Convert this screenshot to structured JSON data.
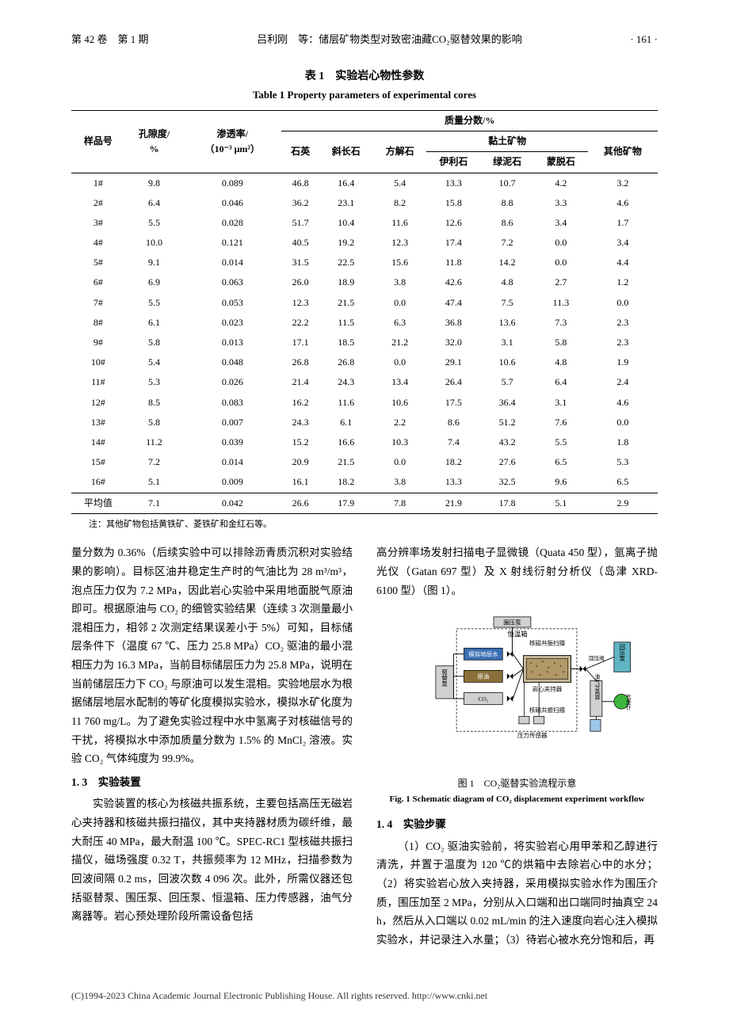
{
  "header": {
    "left": "第 42 卷　第 1 期",
    "center": "吕利刚　等：储层矿物类型对致密油藏CO₂驱替效果的影响",
    "right": "· 161 ·"
  },
  "table1": {
    "caption_cn": "表 1　实验岩心物性参数",
    "caption_en": "Table 1  Property parameters of experimental cores",
    "col_sample": "样品号",
    "col_porosity": "孔隙度/",
    "col_porosity_unit": "%",
    "col_perm": "渗透率/",
    "col_perm_unit": "（10⁻³ μm²）",
    "col_mass_frac": "质量分数/%",
    "col_quartz": "石英",
    "col_feldspar": "斜长石",
    "col_calcite": "方解石",
    "col_clay": "黏土矿物",
    "col_illite": "伊利石",
    "col_chlorite": "绿泥石",
    "col_mont": "蒙脱石",
    "col_other": "其他矿物",
    "rows": [
      [
        "1#",
        "9.8",
        "0.089",
        "46.8",
        "16.4",
        "5.4",
        "13.3",
        "10.7",
        "4.2",
        "3.2"
      ],
      [
        "2#",
        "6.4",
        "0.046",
        "36.2",
        "23.1",
        "8.2",
        "15.8",
        "8.8",
        "3.3",
        "4.6"
      ],
      [
        "3#",
        "5.5",
        "0.028",
        "51.7",
        "10.4",
        "11.6",
        "12.6",
        "8.6",
        "3.4",
        "1.7"
      ],
      [
        "4#",
        "10.0",
        "0.121",
        "40.5",
        "19.2",
        "12.3",
        "17.4",
        "7.2",
        "0.0",
        "3.4"
      ],
      [
        "5#",
        "9.1",
        "0.014",
        "31.5",
        "22.5",
        "15.6",
        "11.8",
        "14.2",
        "0.0",
        "4.4"
      ],
      [
        "6#",
        "6.9",
        "0.063",
        "26.0",
        "18.9",
        "3.8",
        "42.6",
        "4.8",
        "2.7",
        "1.2"
      ],
      [
        "7#",
        "5.5",
        "0.053",
        "12.3",
        "21.5",
        "0.0",
        "47.4",
        "7.5",
        "11.3",
        "0.0"
      ],
      [
        "8#",
        "6.1",
        "0.023",
        "22.2",
        "11.5",
        "6.3",
        "36.8",
        "13.6",
        "7.3",
        "2.3"
      ],
      [
        "9#",
        "5.8",
        "0.013",
        "17.1",
        "18.5",
        "21.2",
        "32.0",
        "3.1",
        "5.8",
        "2.3"
      ],
      [
        "10#",
        "5.4",
        "0.048",
        "26.8",
        "26.8",
        "0.0",
        "29.1",
        "10.6",
        "4.8",
        "1.9"
      ],
      [
        "11#",
        "5.3",
        "0.026",
        "21.4",
        "24.3",
        "13.4",
        "26.4",
        "5.7",
        "6.4",
        "2.4"
      ],
      [
        "12#",
        "8.5",
        "0.083",
        "16.2",
        "11.6",
        "10.6",
        "17.5",
        "36.4",
        "3.1",
        "4.6"
      ],
      [
        "13#",
        "5.8",
        "0.007",
        "24.3",
        "6.1",
        "2.2",
        "8.6",
        "51.2",
        "7.6",
        "0.0"
      ],
      [
        "14#",
        "11.2",
        "0.039",
        "15.2",
        "16.6",
        "10.3",
        "7.4",
        "43.2",
        "5.5",
        "1.8"
      ],
      [
        "15#",
        "7.2",
        "0.014",
        "20.9",
        "21.5",
        "0.0",
        "18.2",
        "27.6",
        "6.5",
        "5.3"
      ],
      [
        "16#",
        "5.1",
        "0.009",
        "16.1",
        "18.2",
        "3.8",
        "13.3",
        "32.5",
        "9.6",
        "6.5"
      ]
    ],
    "avg_row": [
      "平均值",
      "7.1",
      "0.042",
      "26.6",
      "17.9",
      "7.8",
      "21.9",
      "17.8",
      "5.1",
      "2.9"
    ],
    "note": "注：其他矿物包括黄铁矿、菱铁矿和金红石等。"
  },
  "body": {
    "left_p1": "量分数为 0.36%（后续实验中可以排除沥青质沉积对实验结果的影响）。目标区油井稳定生产时的气油比为 28 m³/m³，泡点压力仅为 7.2 MPa，因此岩心实验中采用地面脱气原油即可。根据原油与 CO₂ 的细管实验结果（连续 3 次测量最小混相压力，相邻 2 次测定结果误差小于 5%）可知，目标储层条件下（温度 67 ℃、压力 25.8 MPa）CO₂ 驱油的最小混相压力为 16.3 MPa，当前目标储层压力为 25.8 MPa，说明在当前储层压力下 CO₂ 与原油可以发生混相。实验地层水为根据储层地层水配制的等矿化度模拟实验水，模拟水矿化度为 11 760 mg/L。为了避免实验过程中水中氢离子对核磁信号的干扰，将模拟水中添加质量分数为 1.5% 的 MnCl₂ 溶液。实验 CO₂ 气体纯度为 99.9%。",
    "sec13": "1. 3　实验装置",
    "left_p2": "实验装置的核心为核磁共振系统，主要包括高压无磁岩心夹持器和核磁共振扫描仪，其中夹持器材质为碳纤维，最大耐压 40 MPa，最大耐温 100 ℃。SPEC-RC1 型核磁共振扫描仪，磁场强度 0.32 T，共振频率为 12 MHz，扫描参数为回波间隔 0.2 ms，回波次数 4 096 次。此外，所需仪器还包括驱替泵、围压泵、回压泵、恒温箱、压力传感器，油气分离器等。岩心预处理阶段所需设备包括",
    "right_p1": "高分辨率场发射扫描电子显微镜（Quata 450 型），氩离子抛光仪（Gatan 697 型）及 X 射线衍射分析仪（岛津 XRD-6100 型）（图 1）。",
    "fig1_caption_cn": "图 1　CO₂驱替实验流程示意",
    "fig1_caption_en": "Fig. 1  Schematic diagram of CO₂ displacement experiment workflow",
    "sec14": "1. 4　实验步骤",
    "right_p2": "（1）CO₂ 驱油实验前，将实验岩心用甲苯和乙醇进行清洗，并置于温度为 120 ℃的烘箱中去除岩心中的水分；（2）将实验岩心放入夹持器，采用模拟实验水作为围压介质，围压加至 2 MPa，分别从入口端和出口端同时抽真空 24 h，然后从入口端以 0.02 mL/min 的注入速度向岩心注入模拟实验水，并记录注入水量；（3）待岩心被水充分饱和后，再"
  },
  "diagram": {
    "labels": {
      "confining_pump": "围压泵",
      "thermostat": "恒温箱",
      "nmr_scan": "核磁共振扫描",
      "water": "模拟地层水",
      "oil": "原油",
      "co2": "CO₂",
      "core_holder": "岩心夹持器",
      "displ_pump": "驱替泵",
      "back_valve": "回压阀",
      "back_pump": "回压泵",
      "separator": "油气分离器",
      "gas_meter": "气量计",
      "pressure_sensor": "压力传感器"
    },
    "colors": {
      "box_fill": "#d0d0d0",
      "blue": "#3a6fb5",
      "brown": "#8b6f3a",
      "cyan": "#5fb5c5",
      "green": "#3fb53f",
      "bottle": "#a0c8e8",
      "line": "#000"
    }
  },
  "footer": "(C)1994-2023 China Academic Journal Electronic Publishing House. All rights reserved.    http://www.cnki.net"
}
